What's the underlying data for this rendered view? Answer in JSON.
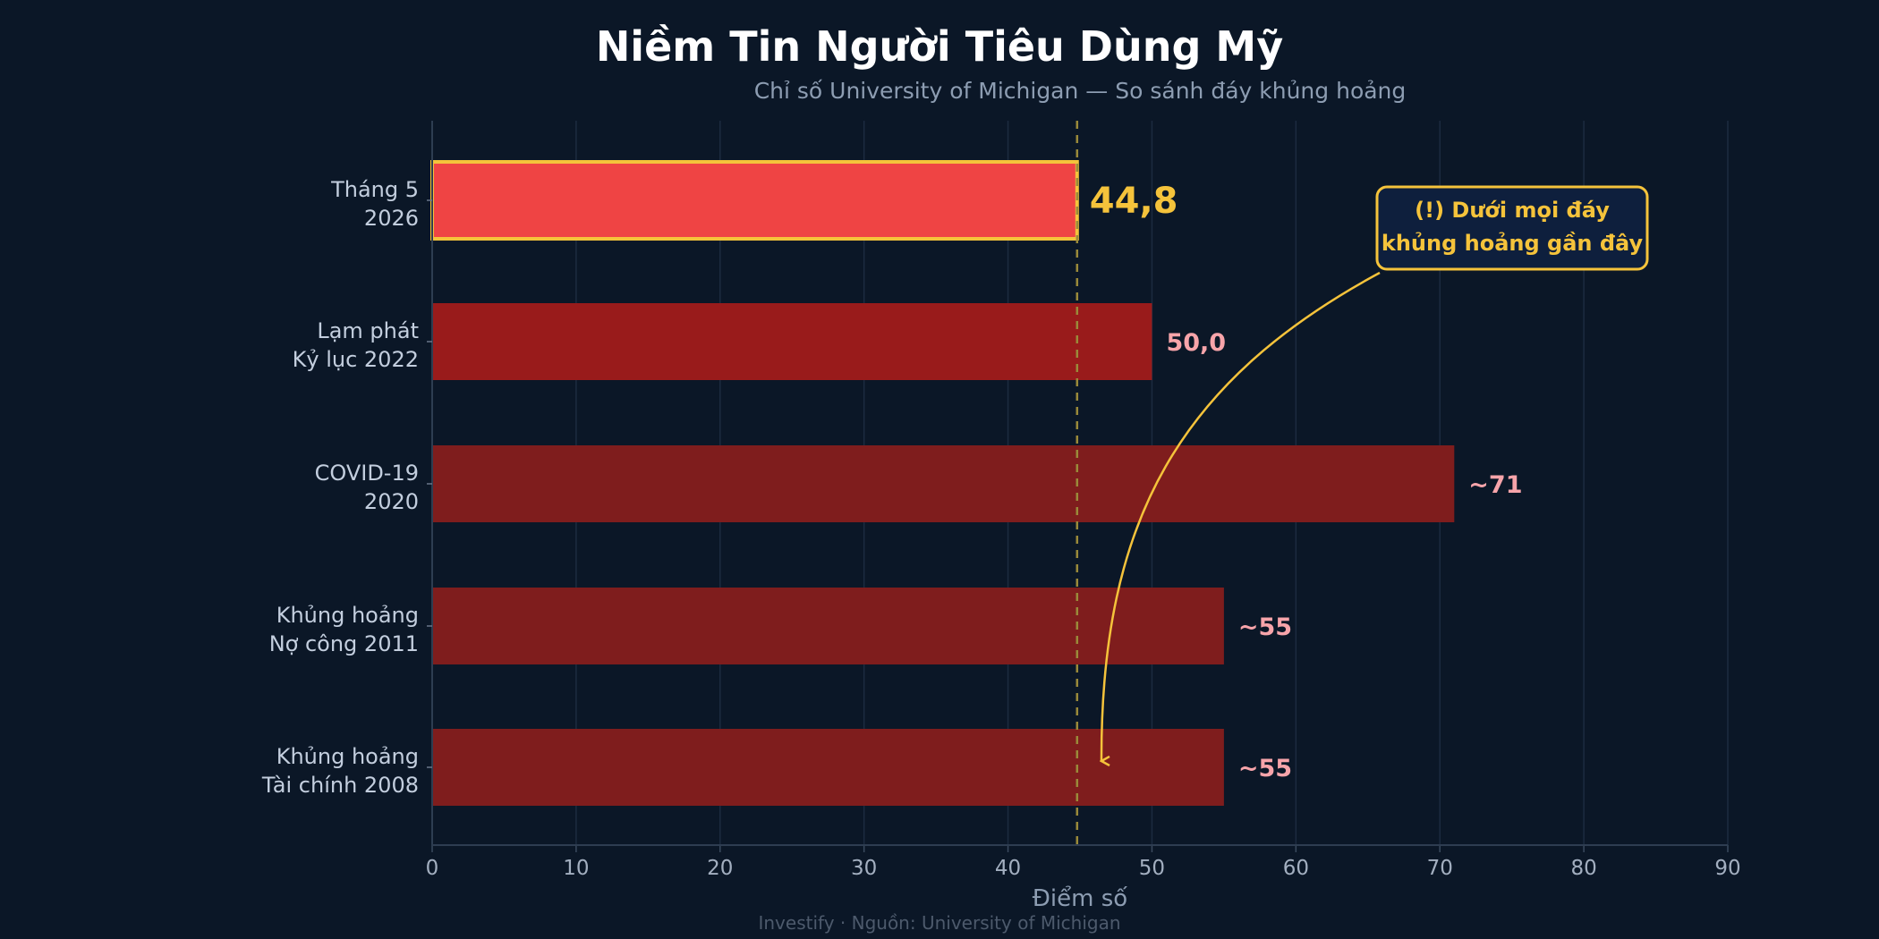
{
  "chart_data": {
    "type": "bar",
    "orientation": "horizontal",
    "title": "Niềm Tin Người Tiêu Dùng Mỹ",
    "subtitle": "Chỉ số University of Michigan — So sánh đáy khủng hoảng",
    "xlabel": "Điểm số",
    "ylabel": "",
    "xlim": [
      0,
      90
    ],
    "xticks": [
      0,
      10,
      20,
      30,
      40,
      50,
      60,
      70,
      80,
      90
    ],
    "grid": true,
    "reference_line": 44.8,
    "categories": [
      [
        "Tháng 5",
        "2026"
      ],
      [
        "Lạm phát",
        "Kỷ lục 2022"
      ],
      [
        "COVID-19",
        "2020"
      ],
      [
        "Khủng hoảng",
        "Nợ công 2011"
      ],
      [
        "Khủng hoảng",
        "Tài chính 2008"
      ]
    ],
    "values": [
      44.8,
      50.0,
      71,
      55,
      55
    ],
    "value_labels": [
      "44,8",
      "50,0",
      "~71",
      "~55",
      "~55"
    ],
    "highlight_index": 0,
    "colors": {
      "background": "#0b1727",
      "highlight_fill": "#ef4444",
      "highlight_edge": "#f5c33b",
      "bar_2022": "#991b1b",
      "bar_other": "#7f1d1d",
      "grid": "#1c2b40",
      "reference_line": "#9a8a3a",
      "annotation": "#f5c33b",
      "annotation_box": "#0e1f3d"
    },
    "bar_colors": [
      "#ef4444",
      "#991b1b",
      "#7f1d1d",
      "#7f1d1d",
      "#7f1d1d"
    ],
    "annotation": {
      "lines": [
        "(!) Dưới mọi đáy",
        "khủng hoảng gần đây"
      ],
      "points_to_index": 4
    },
    "footer": "Investify · Nguồn: University of Michigan"
  }
}
